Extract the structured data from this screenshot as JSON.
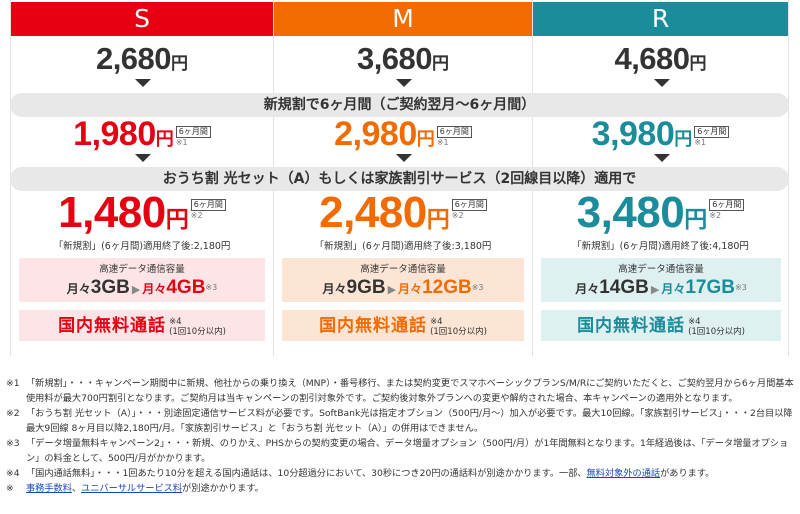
{
  "plans": [
    {
      "key": "s",
      "name": "S",
      "color": "#e60012",
      "light_bg": "#fde4e6",
      "base_price": "2,680",
      "promo_price": "1,980",
      "final_price": "1,480",
      "after_text": "「新規割」(6ヶ月間)適用終了後:2,180円",
      "data_from": "3GB",
      "data_to": "4GB",
      "from_prefix": "月々",
      "to_prefix": "月々"
    },
    {
      "key": "m",
      "name": "M",
      "color": "#f26b00",
      "light_bg": "#fde5d6",
      "base_price": "3,680",
      "promo_price": "2,980",
      "final_price": "2,480",
      "after_text": "「新規割」(6ヶ月間)適用終了後:3,180円",
      "data_from": "9GB",
      "data_to": "12GB",
      "from_prefix": "月々",
      "to_prefix": "月々"
    },
    {
      "key": "r",
      "name": "R",
      "color": "#1a8c9a",
      "light_bg": "#dff0f1",
      "base_price": "4,680",
      "promo_price": "3,980",
      "final_price": "3,480",
      "after_text": "「新規割」(6ヶ月間)適用終了後:4,180円",
      "data_from": "14GB",
      "data_to": "17GB",
      "from_prefix": "月々",
      "to_prefix": "月々"
    }
  ],
  "common": {
    "yen": "円",
    "months_tag": "6ヶ月間",
    "note1": "※1",
    "note2": "※2",
    "note3": "※3",
    "note4": "※4",
    "data_label": "高速データ通信容量",
    "call_text": "国内無料通話",
    "call_note_line1": "※4",
    "call_note_line2": "(1回10分以内)"
  },
  "banners": {
    "new_discount": "新規割で6ヶ月間（ご契約翌月〜6ヶ月間）",
    "home_discount": "おうち割 光セット（A）もしくは家族割引サービス（2回線目以降）適用で"
  },
  "footnotes": [
    {
      "mark": "※1",
      "text": "「新規割」・・・キャンペーン期間中に新規、他社からの乗り換え（MNP）・番号移行、または契約変更でスマホベーシックプランS/M/Rにご契約いただくと、ご契約翌月から6ヶ月間基本使用料が最大700円割引となります。ご契約月は当キャンペーンの割引対象外です。ご契約後対象外プランへの変更や解約された場合、本キャンペーンの適用外となります。"
    },
    {
      "mark": "※2",
      "text": "「おうち割 光セット（A）」・・・別途固定通信サービス料が必要です。SoftBank光は指定オプション（500円/月〜）加入が必要です。最大10回線。「家族割引サービス」・・・2台目以降最大9回線 8ヶ月目以降2,180円/月。「家族割引サービス」と「おうち割 光セット（A）」の併用はできません。"
    },
    {
      "mark": "※3",
      "text": "「データ増量無料キャンペーン2」・・・新規、のりかえ、PHSからの契約変更の場合、データ増量オプション（500円/月）が1年間無料となります。1年経過後は、「データ増量オプション」の料金として、500円/月がかかります。"
    },
    {
      "mark": "※4",
      "text_before": "「国内通話無料」・・・1回あたり10分を超える国内通話は、10分超過分において、30秒につき20円の通話料が別途かかります。一部、",
      "link": "無料対象外の通話",
      "text_after": "があります。"
    }
  ],
  "fees_line": {
    "mark": "※",
    "link1": "事務手数料",
    "sep": "、",
    "link2": "ユニバーサルサービス料",
    "text_after": "が別途かかります。"
  }
}
